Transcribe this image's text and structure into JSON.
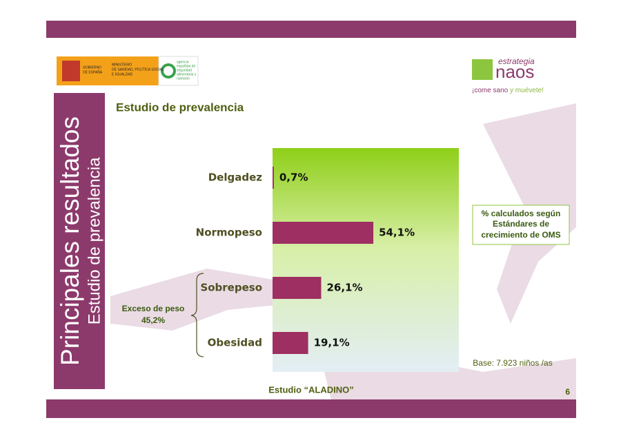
{
  "slide": {
    "side_title": "Principales resultados",
    "side_subtitle": "Estudio de prevalencia",
    "logo_left": {
      "government": [
        "GOBIERNO",
        "DE ESPAÑA"
      ],
      "ministry": [
        "MINISTERIO",
        "DE SANIDAD, POLÍTICA SOCIAL",
        "E IGUALDAD"
      ],
      "agency": [
        "agencia",
        "española de",
        "seguridad",
        "alimentaria y",
        "nutrición"
      ]
    },
    "logo_right": {
      "top": "estrategia",
      "name": "naos",
      "slogan_a": "¡come sano ",
      "slogan_b": "y muévete!"
    },
    "footer": "Estudio “ALADINO”",
    "page_number": "6"
  },
  "chart_data": {
    "type": "hbar",
    "title": "Estudio de prevalencia",
    "categories": [
      "Delgadez",
      "Normopeso",
      "Sobrepeso",
      "Obesidad"
    ],
    "values": [
      0.7,
      54.1,
      26.1,
      19.1
    ],
    "value_labels": [
      "0,7%",
      "54,1%",
      "26,1%",
      "19,1%"
    ],
    "color": "#9e2f62",
    "xlim": [
      0,
      100
    ],
    "group_annotation": [
      "Exceso de peso",
      "45,2%"
    ],
    "note": [
      "% calculados según",
      "Estándares de",
      "crecimiento de OMS"
    ],
    "base_note": "Base: 7.923 niños /as"
  }
}
